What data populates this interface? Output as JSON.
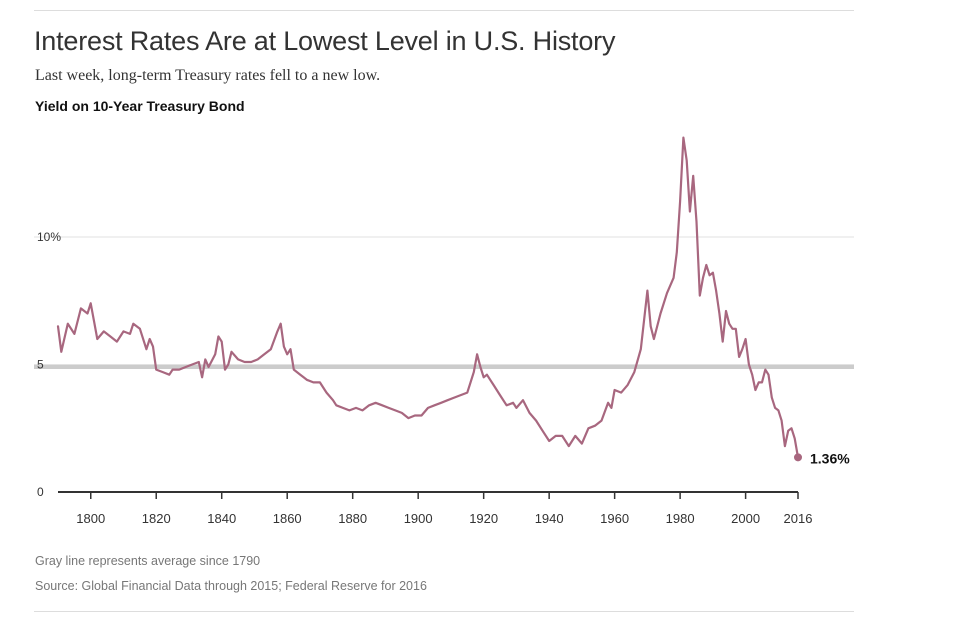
{
  "header": {
    "title": "Interest Rates Are at Lowest Level in U.S. History",
    "subtitle": "Last week, long-term Treasury rates fell to a new low.",
    "chart_label": "Yield on 10-Year Treasury Bond"
  },
  "footer": {
    "note": "Gray line represents average since 1790",
    "source": "Source: Global Financial Data through 2015; Federal Reserve for 2016"
  },
  "colors": {
    "line": "#a8677f",
    "average": "#cccccc",
    "grid": "#e2e2e2",
    "axis": "#333333"
  },
  "chart_data": {
    "type": "line",
    "title": "Yield on 10-Year Treasury Bond",
    "xlabel": "",
    "ylabel": "",
    "xlim": [
      1790,
      2016
    ],
    "ylim": [
      0,
      14
    ],
    "x_ticks": [
      1800,
      1820,
      1840,
      1860,
      1880,
      1900,
      1920,
      1940,
      1960,
      1980,
      2000,
      2016
    ],
    "x_tick_labels": [
      "1800",
      "1820",
      "1840",
      "1860",
      "1880",
      "1900",
      "1920",
      "1940",
      "1960",
      "1980",
      "2000",
      "2016"
    ],
    "y_ticks": [
      0,
      5,
      10
    ],
    "y_tick_labels": [
      "0",
      "5",
      "10%"
    ],
    "average_line": {
      "label": "Gray line represents average since 1790",
      "value": 4.9
    },
    "end_label": {
      "text": "1.36%",
      "x": 2016,
      "y": 1.36
    },
    "series": [
      {
        "name": "10-Year Treasury yield",
        "x": [
          1790,
          1791,
          1793,
          1795,
          1797,
          1799,
          1800,
          1801,
          1802,
          1804,
          1806,
          1808,
          1810,
          1812,
          1813,
          1815,
          1817,
          1818,
          1819,
          1820,
          1822,
          1824,
          1825,
          1827,
          1829,
          1831,
          1833,
          1834,
          1835,
          1836,
          1838,
          1839,
          1840,
          1841,
          1842,
          1843,
          1845,
          1847,
          1849,
          1851,
          1853,
          1855,
          1857,
          1858,
          1859,
          1860,
          1861,
          1862,
          1864,
          1865,
          1866,
          1868,
          1870,
          1872,
          1874,
          1875,
          1877,
          1879,
          1881,
          1883,
          1885,
          1887,
          1889,
          1891,
          1893,
          1895,
          1897,
          1899,
          1901,
          1903,
          1905,
          1907,
          1909,
          1911,
          1913,
          1915,
          1917,
          1918,
          1919,
          1920,
          1921,
          1923,
          1925,
          1927,
          1929,
          1930,
          1932,
          1934,
          1936,
          1938,
          1940,
          1942,
          1944,
          1946,
          1948,
          1950,
          1952,
          1954,
          1956,
          1958,
          1959,
          1960,
          1962,
          1964,
          1966,
          1968,
          1970,
          1971,
          1972,
          1974,
          1976,
          1978,
          1979,
          1980,
          1981,
          1982,
          1983,
          1984,
          1985,
          1986,
          1987,
          1988,
          1989,
          1990,
          1991,
          1992,
          1993,
          1994,
          1995,
          1996,
          1997,
          1998,
          1999,
          2000,
          2001,
          2002,
          2003,
          2004,
          2005,
          2006,
          2007,
          2008,
          2009,
          2010,
          2011,
          2012,
          2013,
          2014,
          2015,
          2016
        ],
        "y": [
          6.5,
          5.5,
          6.6,
          6.2,
          7.2,
          7.0,
          7.4,
          6.7,
          6.0,
          6.3,
          6.1,
          5.9,
          6.3,
          6.2,
          6.6,
          6.4,
          5.6,
          6.0,
          5.7,
          4.8,
          4.7,
          4.6,
          4.8,
          4.8,
          4.9,
          5.0,
          5.1,
          4.5,
          5.2,
          4.9,
          5.4,
          6.1,
          5.9,
          4.8,
          5.0,
          5.5,
          5.2,
          5.1,
          5.1,
          5.2,
          5.4,
          5.6,
          6.3,
          6.6,
          5.7,
          5.4,
          5.6,
          4.8,
          4.6,
          4.5,
          4.4,
          4.3,
          4.3,
          3.9,
          3.6,
          3.4,
          3.3,
          3.2,
          3.3,
          3.2,
          3.4,
          3.5,
          3.4,
          3.3,
          3.2,
          3.1,
          2.9,
          3.0,
          3.0,
          3.3,
          3.4,
          3.5,
          3.6,
          3.7,
          3.8,
          3.9,
          4.7,
          5.4,
          4.9,
          4.5,
          4.6,
          4.2,
          3.8,
          3.4,
          3.5,
          3.3,
          3.6,
          3.1,
          2.8,
          2.4,
          2.0,
          2.2,
          2.2,
          1.8,
          2.2,
          1.9,
          2.5,
          2.6,
          2.8,
          3.5,
          3.3,
          4.0,
          3.9,
          4.2,
          4.7,
          5.6,
          7.9,
          6.5,
          6.0,
          7.0,
          7.8,
          8.4,
          9.4,
          11.4,
          13.9,
          13.0,
          11.0,
          12.4,
          10.6,
          7.7,
          8.4,
          8.9,
          8.5,
          8.6,
          7.9,
          7.0,
          5.9,
          7.1,
          6.6,
          6.4,
          6.4,
          5.3,
          5.6,
          6.0,
          5.0,
          4.6,
          4.0,
          4.3,
          4.3,
          4.8,
          4.6,
          3.7,
          3.3,
          3.2,
          2.8,
          1.8,
          2.4,
          2.5,
          2.1,
          1.36
        ]
      }
    ]
  }
}
